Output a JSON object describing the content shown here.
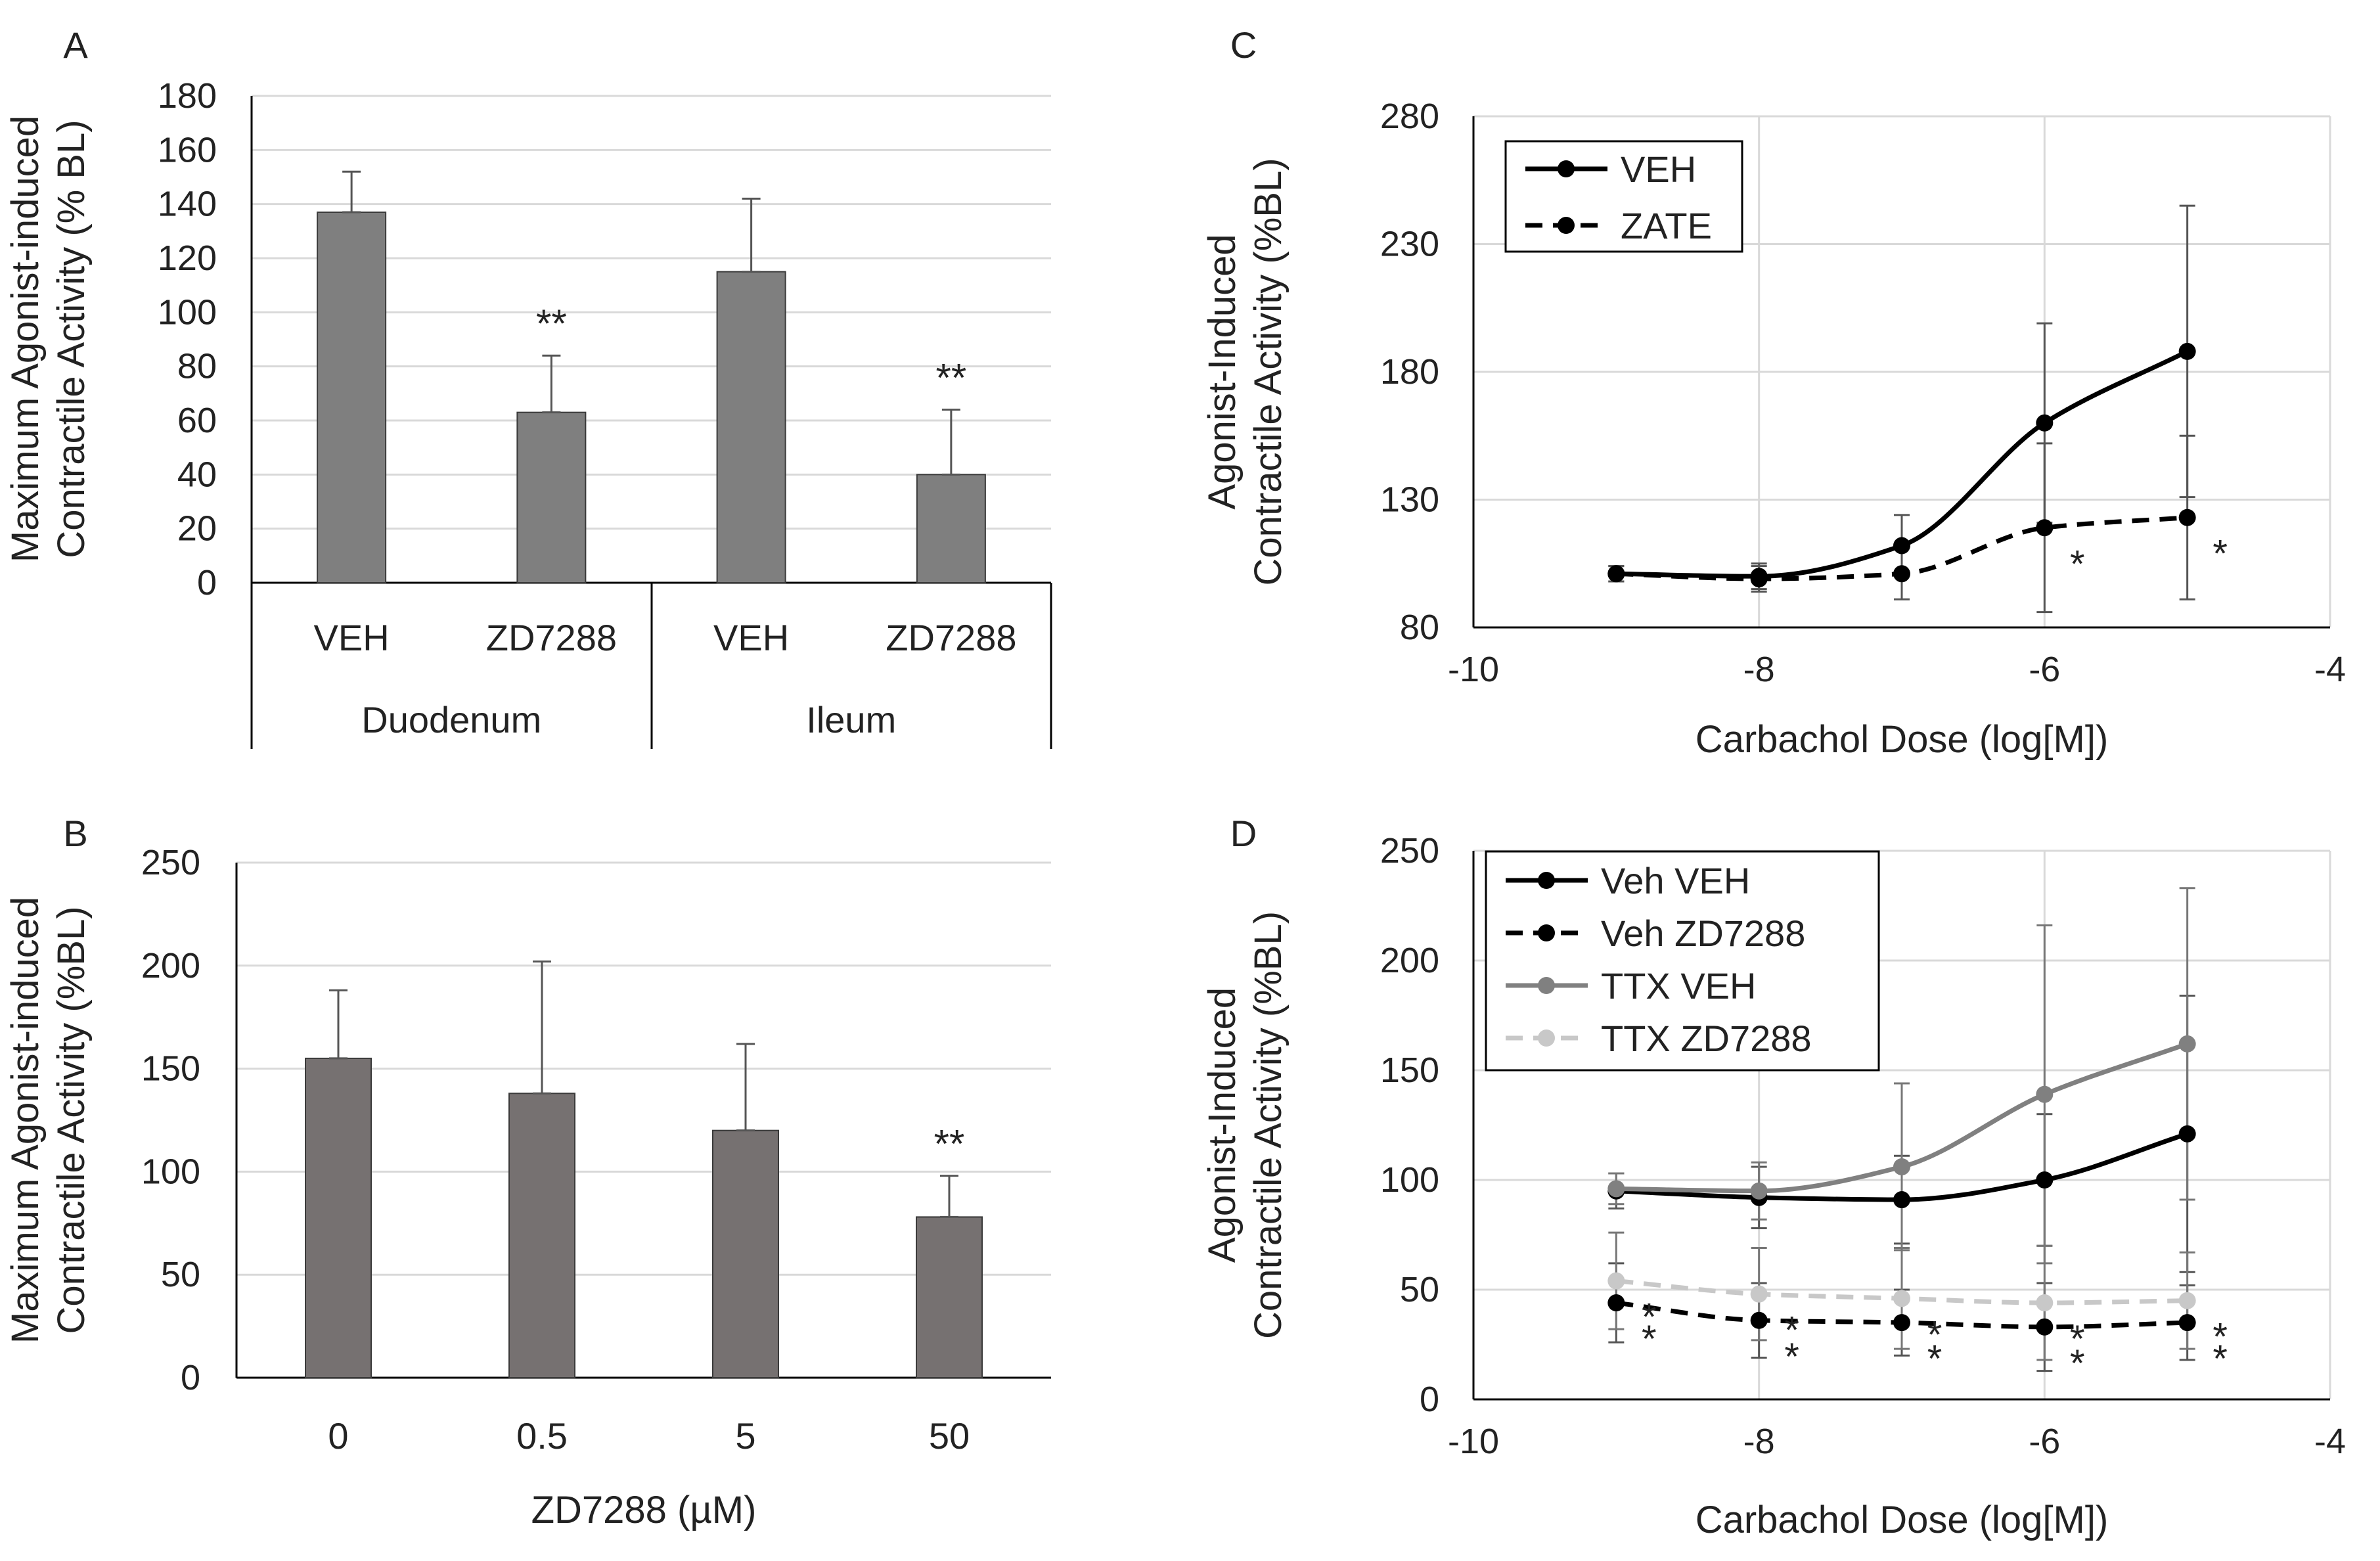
{
  "chart_data": [
    {
      "panel": "A",
      "type": "bar",
      "ylabel_lines": [
        "Maximum Agonist-induced",
        "Contractile Activity (% BL)"
      ],
      "ylim": [
        0,
        180
      ],
      "yticks": [
        0,
        20,
        40,
        60,
        80,
        100,
        120,
        140,
        160,
        180
      ],
      "grid": true,
      "bar_color": "#7f7f7f",
      "groups": [
        {
          "label": "Duodenum",
          "categories": [
            "VEH",
            "ZD7288"
          ],
          "values": [
            137,
            63
          ],
          "errors": [
            15,
            21
          ],
          "annotations": [
            "",
            "**"
          ]
        },
        {
          "label": "Ileum",
          "categories": [
            "VEH",
            "ZD7288"
          ],
          "values": [
            115,
            40
          ],
          "errors": [
            27,
            24
          ],
          "annotations": [
            "",
            "**"
          ]
        }
      ]
    },
    {
      "panel": "B",
      "type": "bar",
      "ylabel_lines": [
        "Maximum Agonist-induced",
        "Contractile Activity (%BL)"
      ],
      "xlabel": "ZD7288 (µM)",
      "ylim": [
        0,
        250
      ],
      "yticks": [
        0,
        50,
        100,
        150,
        200,
        250
      ],
      "grid": true,
      "bar_color": "#767171",
      "categories": [
        "0",
        "0.5",
        "5",
        "50"
      ],
      "values": [
        155,
        138,
        120,
        78
      ],
      "errors": [
        33,
        64,
        42,
        20
      ],
      "annotations": [
        "",
        "",
        "",
        "**"
      ]
    },
    {
      "panel": "C",
      "type": "line",
      "ylabel_lines": [
        "Agonist-Induced",
        "Contractile Activity (%BL)"
      ],
      "xlabel": "Carbachol Dose (log[M])",
      "xlim": [
        -10,
        -4
      ],
      "xticks": [
        -10,
        -8,
        -6,
        -4
      ],
      "ylim": [
        80,
        280
      ],
      "yticks": [
        80,
        130,
        180,
        230,
        280
      ],
      "grid": true,
      "legend_position": "top-left",
      "series": [
        {
          "name": "VEH",
          "color": "#000000",
          "dashed": false,
          "x": [
            -9,
            -8,
            -7,
            -6,
            -5
          ],
          "y": [
            101,
            100,
            112,
            160,
            188
          ],
          "errors": [
            3,
            5,
            12,
            39,
            57
          ],
          "annotations": [
            "",
            "",
            "",
            "",
            ""
          ]
        },
        {
          "name": "ZATE",
          "color": "#000000",
          "dashed": true,
          "x": [
            -9,
            -8,
            -7,
            -6,
            -5
          ],
          "y": [
            101,
            99,
            101,
            119,
            123
          ],
          "errors": [
            3,
            5,
            10,
            33,
            32
          ],
          "annotations": [
            "",
            "",
            "",
            "*",
            "*"
          ]
        }
      ]
    },
    {
      "panel": "D",
      "type": "line",
      "ylabel_lines": [
        "Agonist-Induced",
        "Contractile Activity (%BL)"
      ],
      "xlabel": "Carbachol Dose (log[M])",
      "xlim": [
        -10,
        -4
      ],
      "xticks": [
        -10,
        -8,
        -6,
        -4
      ],
      "ylim": [
        0,
        250
      ],
      "yticks": [
        0,
        50,
        100,
        150,
        200,
        250
      ],
      "grid": true,
      "legend_position": "top-left",
      "series": [
        {
          "name": "Veh VEH",
          "color": "#000000",
          "dashed": false,
          "x": [
            -9,
            -8,
            -7,
            -6,
            -5
          ],
          "y": [
            95,
            92,
            91,
            100,
            121
          ],
          "errors": [
            8,
            14,
            20,
            30,
            63
          ],
          "annotations": [
            "",
            "",
            "",
            "",
            ""
          ]
        },
        {
          "name": "Veh ZD7288",
          "color": "#000000",
          "dashed": true,
          "x": [
            -9,
            -8,
            -7,
            -6,
            -5
          ],
          "y": [
            44,
            36,
            35,
            33,
            35
          ],
          "errors": [
            18,
            17,
            15,
            20,
            17
          ],
          "annotations": [
            "*",
            "*",
            "*",
            "*",
            "*"
          ]
        },
        {
          "name": "TTX VEH",
          "color": "#808080",
          "dashed": false,
          "x": [
            -9,
            -8,
            -7,
            -6,
            -5
          ],
          "y": [
            96,
            95,
            106,
            139,
            162
          ],
          "errors": [
            7,
            13,
            38,
            77,
            71
          ],
          "annotations": [
            "",
            "",
            "",
            "",
            ""
          ]
        },
        {
          "name": "TTX ZD7288",
          "color": "#c8c8c8",
          "dashed": true,
          "x": [
            -9,
            -8,
            -7,
            -6,
            -5
          ],
          "y": [
            54,
            48,
            46,
            44,
            45
          ],
          "errors": [
            22,
            21,
            23,
            26,
            22
          ],
          "annotations": [
            "*",
            "*",
            "*",
            "*",
            "*"
          ]
        }
      ]
    }
  ]
}
